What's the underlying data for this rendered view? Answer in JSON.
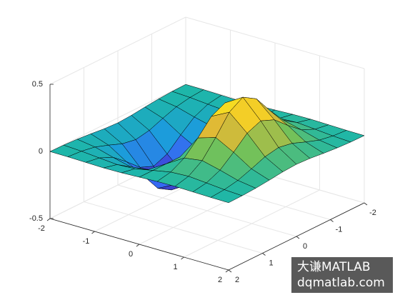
{
  "chart_data": {
    "type": "surface",
    "x": [
      -2,
      -1.6,
      -1.2,
      -0.8,
      -0.4,
      0,
      0.4,
      0.8,
      1.2,
      1.6,
      2
    ],
    "y": [
      -2,
      -1.6,
      -1.2,
      -0.8,
      -0.4,
      0,
      0.4,
      0.8,
      1.2,
      1.6,
      2
    ],
    "z": [
      [
        -0.001,
        -0.002,
        -0.005,
        -0.008,
        -0.006,
        0,
        0.006,
        0.008,
        0.005,
        0.002,
        0.001
      ],
      [
        -0.003,
        -0.01,
        -0.022,
        -0.033,
        -0.026,
        0,
        0.026,
        0.033,
        0.022,
        0.01,
        0.003
      ],
      [
        -0.009,
        -0.029,
        -0.067,
        -0.1,
        -0.081,
        0,
        0.081,
        0.1,
        0.067,
        0.029,
        0.009
      ],
      [
        -0.019,
        -0.065,
        -0.15,
        -0.222,
        -0.18,
        0,
        0.18,
        0.222,
        0.15,
        0.065,
        0.019
      ],
      [
        -0.031,
        -0.105,
        -0.242,
        -0.36,
        -0.291,
        0,
        0.291,
        0.36,
        0.242,
        0.105,
        0.031
      ],
      [
        -0.037,
        -0.124,
        -0.284,
        -0.422,
        -0.341,
        0,
        0.341,
        0.422,
        0.284,
        0.124,
        0.037
      ],
      [
        -0.031,
        -0.105,
        -0.242,
        -0.36,
        -0.291,
        0,
        0.291,
        0.36,
        0.242,
        0.105,
        0.031
      ],
      [
        -0.019,
        -0.065,
        -0.15,
        -0.222,
        -0.18,
        0,
        0.18,
        0.222,
        0.15,
        0.065,
        0.019
      ],
      [
        -0.009,
        -0.029,
        -0.067,
        -0.1,
        -0.081,
        0,
        0.081,
        0.1,
        0.067,
        0.029,
        0.009
      ],
      [
        -0.003,
        -0.01,
        -0.022,
        -0.033,
        -0.026,
        0,
        0.026,
        0.033,
        0.022,
        0.01,
        0.003
      ],
      [
        -0.001,
        -0.002,
        -0.005,
        -0.008,
        -0.006,
        0,
        0.006,
        0.008,
        0.005,
        0.002,
        0.001
      ]
    ],
    "xlim": [
      -2,
      2
    ],
    "ylim": [
      -2,
      2
    ],
    "zlim": [
      -0.5,
      0.5
    ],
    "xticks": [
      -2,
      -1,
      0,
      1,
      2
    ],
    "yticks": [
      -2,
      -1,
      0,
      1,
      2
    ],
    "zticks": [
      -0.5,
      0,
      0.5
    ],
    "grid": true,
    "colormap": [
      "#3e26a8",
      "#3a62f5",
      "#1c9cdb",
      "#1eb7a8",
      "#73c15a",
      "#f0b930",
      "#f9fb15"
    ]
  },
  "watermark": {
    "line1": "大谦MATLAB",
    "line2": "dqmatlab.com"
  }
}
